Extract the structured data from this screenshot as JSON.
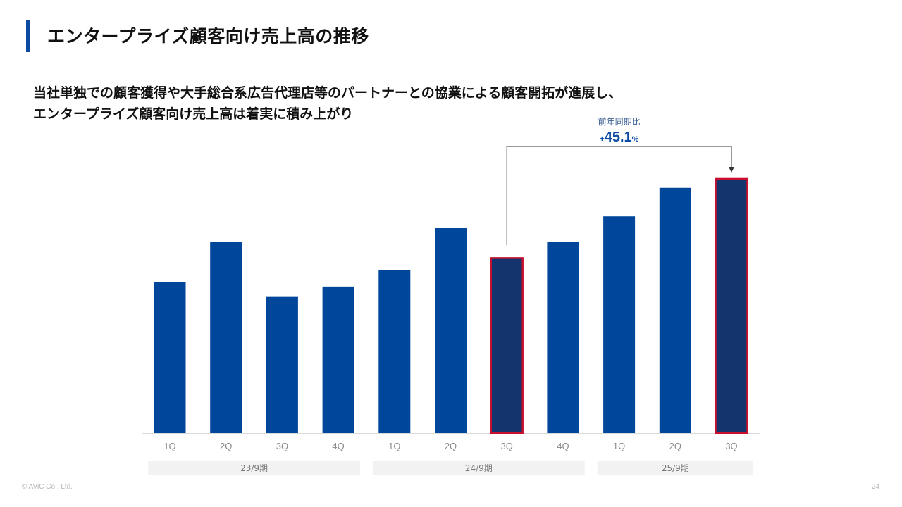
{
  "slide": {
    "title": "エンタープライズ顧客向け売上高の推移",
    "lead_line1": "当社単独での顧客獲得や大手総合系広告代理店等のパートナーとの協業による顧客開拓が進展し、",
    "lead_line2": "エンタープライズ顧客向け売上高は着実に積み上がり",
    "footer": "© AViC Co., Ltd.",
    "page_number": "24"
  },
  "chart_data": {
    "type": "bar",
    "categories": [
      "1Q",
      "2Q",
      "3Q",
      "4Q",
      "1Q",
      "2Q",
      "3Q",
      "4Q",
      "1Q",
      "2Q",
      "3Q"
    ],
    "periods": [
      {
        "label": "23/9期",
        "quarters": 4
      },
      {
        "label": "24/9期",
        "quarters": 4
      },
      {
        "label": "25/9期",
        "quarters": 3
      }
    ],
    "values": [
      217,
      275,
      196,
      211,
      235,
      295,
      252,
      275,
      312,
      353,
      366
    ],
    "highlighted": [
      6,
      10
    ],
    "ylim": [
      0,
      370
    ],
    "colors": {
      "bar": "#00469a",
      "bar_highlight": "#14346d",
      "highlight_border": "#c8102e"
    },
    "annotation": {
      "caption": "前年同期比",
      "prefix": "+",
      "value": "45.1",
      "unit": "%",
      "from_index": 6,
      "to_index": 10
    }
  }
}
